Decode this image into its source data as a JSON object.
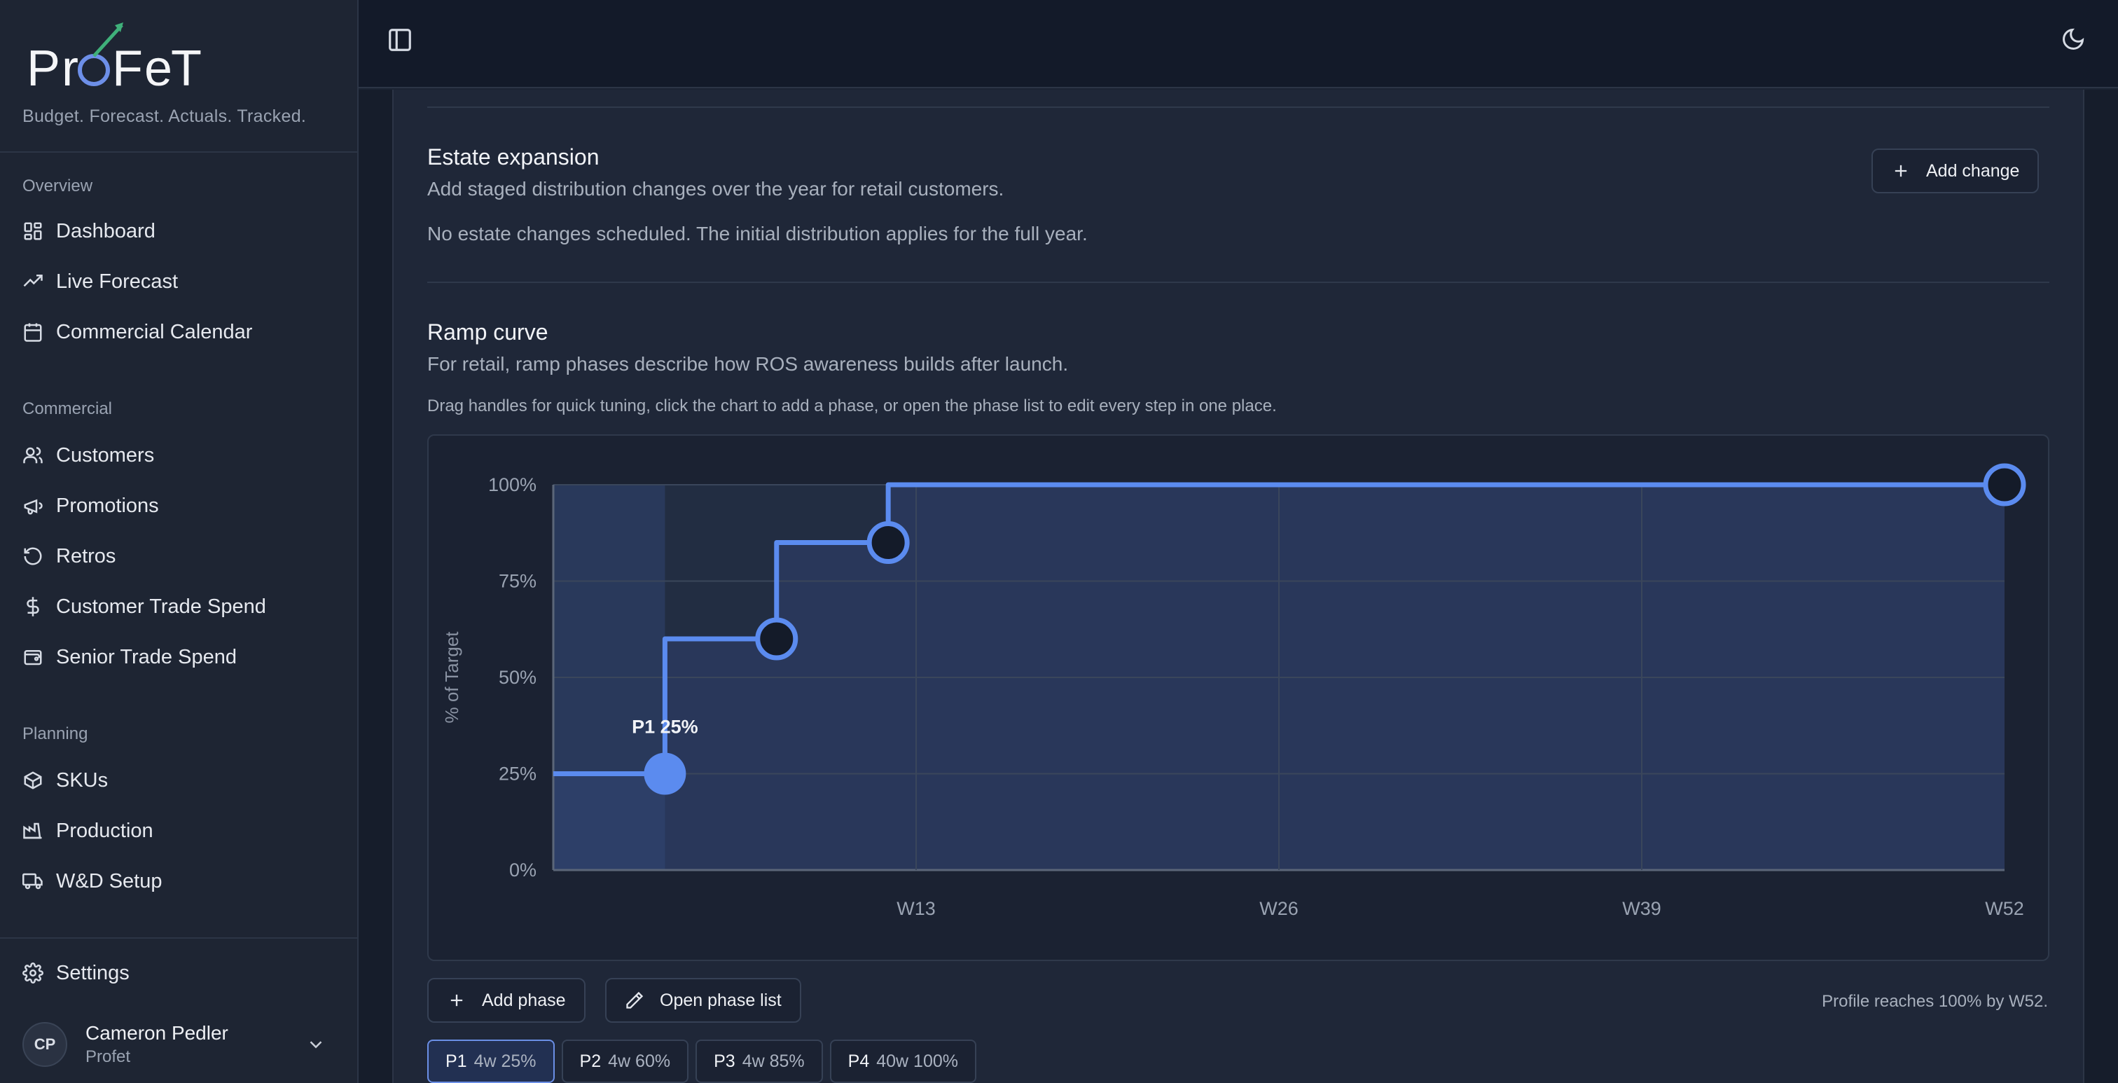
{
  "brand": {
    "name": "ProFeT",
    "tagline": "Budget. Forecast. Actuals. Tracked."
  },
  "sidebar": {
    "sections": [
      {
        "title": "Overview",
        "items": [
          {
            "label": "Dashboard",
            "icon": "dashboard-icon"
          },
          {
            "label": "Live Forecast",
            "icon": "trending-up-icon"
          },
          {
            "label": "Commercial Calendar",
            "icon": "calendar-icon"
          }
        ]
      },
      {
        "title": "Commercial",
        "items": [
          {
            "label": "Customers",
            "icon": "users-icon"
          },
          {
            "label": "Promotions",
            "icon": "megaphone-icon"
          },
          {
            "label": "Retros",
            "icon": "rotate-ccw-icon"
          },
          {
            "label": "Customer Trade Spend",
            "icon": "dollar-icon"
          },
          {
            "label": "Senior Trade Spend",
            "icon": "wallet-icon"
          }
        ]
      },
      {
        "title": "Planning",
        "items": [
          {
            "label": "SKUs",
            "icon": "package-icon"
          },
          {
            "label": "Production",
            "icon": "factory-icon"
          },
          {
            "label": "W&D Setup",
            "icon": "truck-icon"
          }
        ]
      }
    ],
    "settings": {
      "label": "Settings",
      "icon": "gear-icon"
    },
    "user": {
      "initials": "CP",
      "name": "Cameron Pedler",
      "org": "Profet"
    }
  },
  "estate": {
    "title": "Estate expansion",
    "description": "Add staged distribution changes over the year for retail customers.",
    "empty_message": "No estate changes scheduled. The initial distribution applies for the full year.",
    "add_button": "Add change"
  },
  "ramp": {
    "title": "Ramp curve",
    "description": "For retail, ramp phases describe how ROS awareness builds after launch.",
    "hint": "Drag handles for quick tuning, click the chart to add a phase, or open the phase list to edit every step in one place.",
    "add_phase_button": "Add phase",
    "open_list_button": "Open phase list",
    "reach_text": "Profile reaches 100% by W52.",
    "phases": [
      {
        "code": "P1",
        "detail": "4w 25%",
        "active": true
      },
      {
        "code": "P2",
        "detail": "4w 60%",
        "active": false
      },
      {
        "code": "P3",
        "detail": "4w 85%",
        "active": false
      },
      {
        "code": "P4",
        "detail": "40w 100%",
        "active": false
      }
    ]
  },
  "chart_data": {
    "type": "line",
    "step": true,
    "ylabel": "% of Target",
    "xlabel": "",
    "y_ticks": [
      "0%",
      "25%",
      "50%",
      "75%",
      "100%"
    ],
    "x_ticks": [
      "W13",
      "W26",
      "W39",
      "W52"
    ],
    "x_tick_values": [
      13,
      26,
      39,
      52
    ],
    "xlim": [
      0,
      52
    ],
    "ylim": [
      0,
      100
    ],
    "grid": true,
    "series": [
      {
        "values": [
          {
            "x": 0,
            "y": 25
          },
          {
            "x": 4,
            "y": 25
          },
          {
            "x": 4,
            "y": 60
          },
          {
            "x": 8,
            "y": 60
          },
          {
            "x": 8,
            "y": 85
          },
          {
            "x": 12,
            "y": 85
          },
          {
            "x": 12,
            "y": 100
          },
          {
            "x": 52,
            "y": 100
          }
        ]
      }
    ],
    "handles": [
      {
        "x": 4,
        "y": 25,
        "selected": true
      },
      {
        "x": 8,
        "y": 60,
        "selected": false
      },
      {
        "x": 12,
        "y": 85,
        "selected": false
      },
      {
        "x": 52,
        "y": 100,
        "selected": false
      }
    ],
    "selected_label": "P1 25%",
    "line_color": "#5b8bef"
  }
}
